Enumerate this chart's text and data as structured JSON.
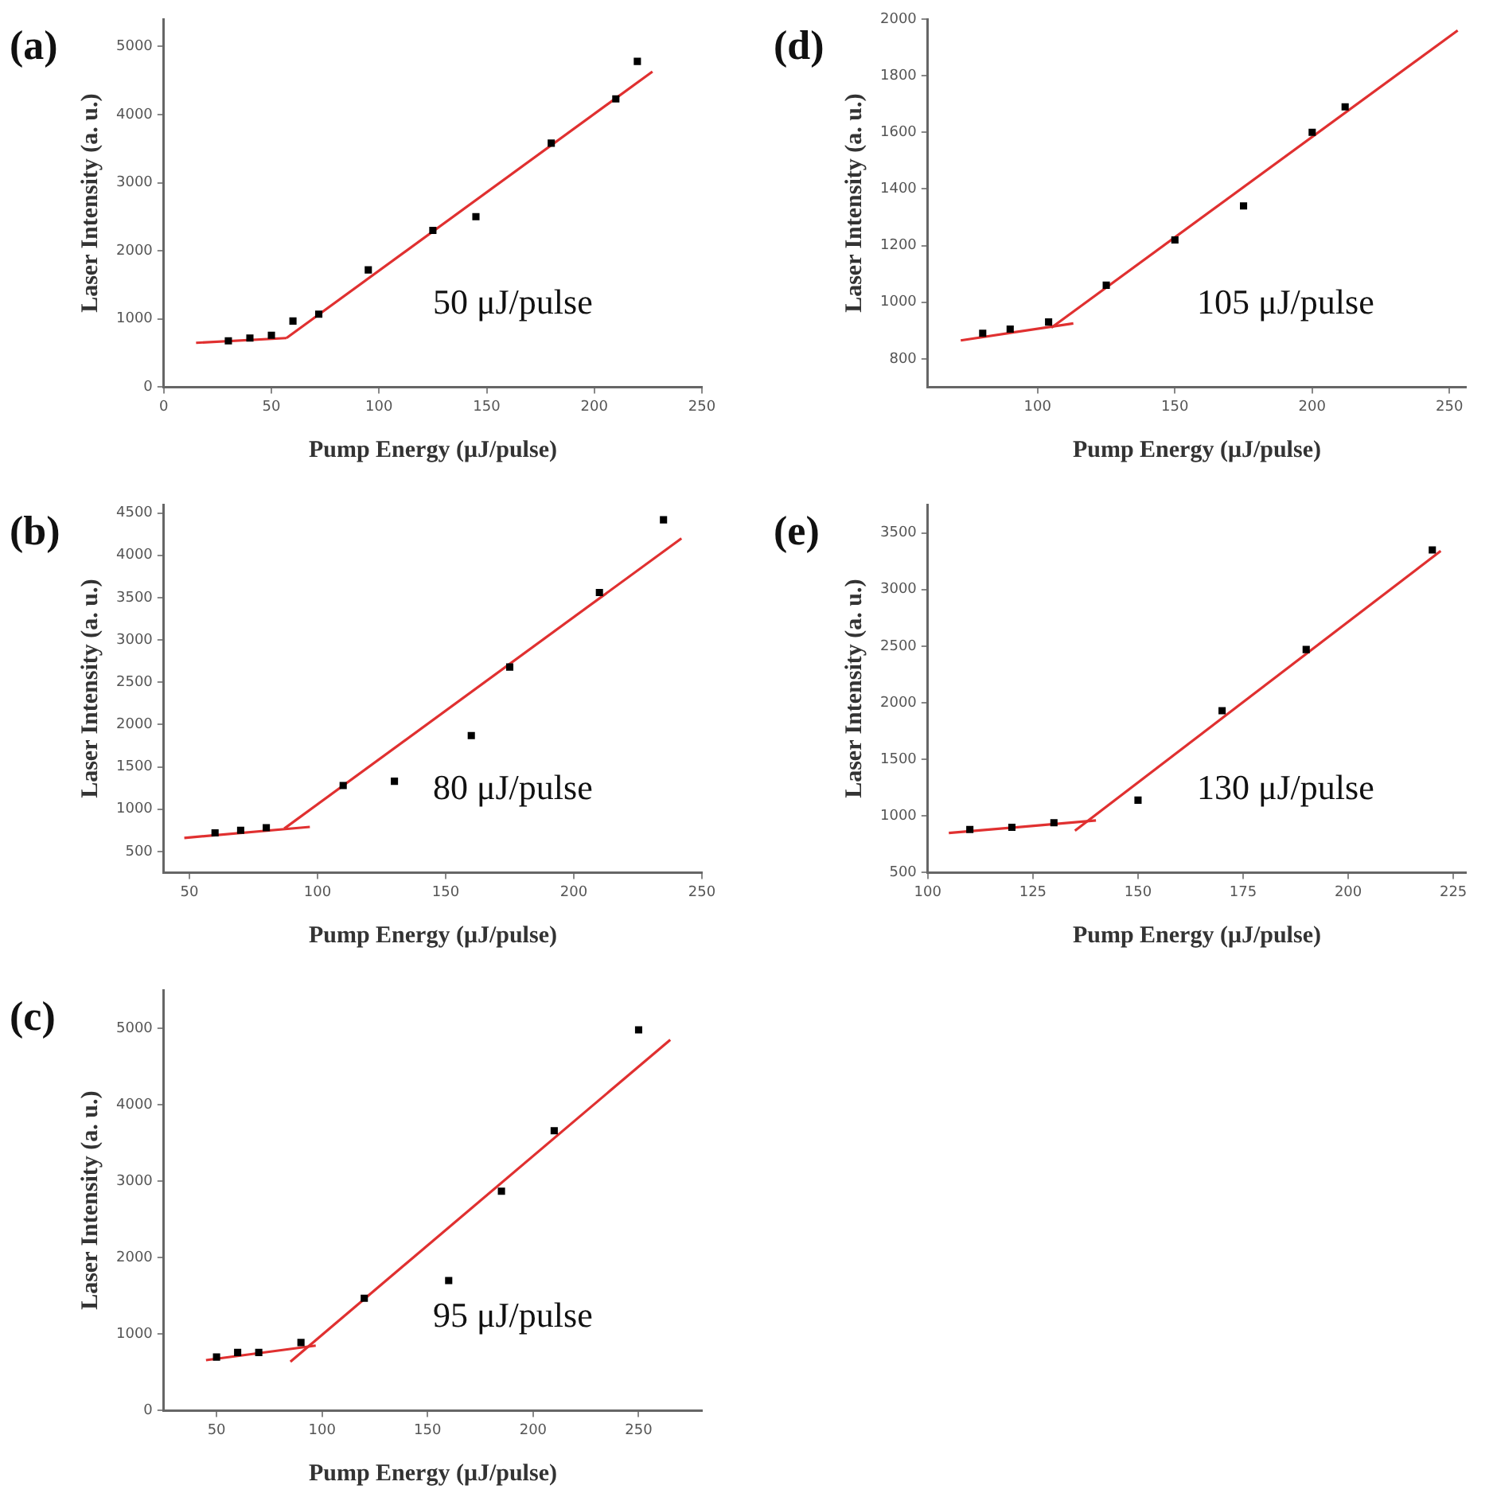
{
  "chart_data": [
    {
      "type": "scatter",
      "title": "(a)",
      "xlabel": "Pump Energy (μJ/pulse)",
      "ylabel": "Laser Intensity (a. u.)",
      "xlim": [
        0,
        250
      ],
      "xticks": [
        0,
        50,
        100,
        150,
        200,
        250
      ],
      "ylim": [
        0,
        5400
      ],
      "yticks": [
        0,
        1000,
        2000,
        3000,
        4000,
        5000
      ],
      "annotations": [
        "50 μJ/pulse"
      ],
      "series": [
        {
          "type": "scatter",
          "color": "#000000",
          "x": [
            30,
            40,
            50,
            60,
            72,
            95,
            125,
            145,
            180,
            210,
            220
          ],
          "values": [
            680,
            720,
            760,
            970,
            1070,
            1720,
            2300,
            2500,
            3580,
            4230,
            4780
          ],
          "marker": "square"
        },
        {
          "type": "line",
          "color": "#e03030",
          "x": [
            15,
            57
          ],
          "values": [
            650,
            720
          ]
        },
        {
          "type": "line",
          "color": "#e03030",
          "x": [
            57,
            227
          ],
          "values": [
            720,
            4630
          ]
        }
      ]
    },
    {
      "type": "scatter",
      "title": "(b)",
      "xlabel": "Pump Energy (μJ/pulse)",
      "ylabel": "Laser Intensity (a. u.)",
      "xlim": [
        40,
        250
      ],
      "xticks": [
        50,
        100,
        150,
        200,
        250
      ],
      "ylim": [
        250,
        4600
      ],
      "yticks": [
        500,
        1000,
        1500,
        2000,
        2500,
        3000,
        3500,
        4000,
        4500
      ],
      "annotations": [
        "80 μJ/pulse"
      ],
      "series": [
        {
          "type": "scatter",
          "color": "#000000",
          "x": [
            60,
            70,
            80,
            110,
            130,
            160,
            175,
            210,
            235
          ],
          "values": [
            720,
            750,
            780,
            1280,
            1330,
            1870,
            2680,
            3560,
            4420
          ],
          "marker": "square"
        },
        {
          "type": "line",
          "color": "#e03030",
          "x": [
            48,
            97
          ],
          "values": [
            660,
            790
          ]
        },
        {
          "type": "line",
          "color": "#e03030",
          "x": [
            87,
            242
          ],
          "values": [
            770,
            4200
          ]
        }
      ]
    },
    {
      "type": "scatter",
      "title": "(c)",
      "xlabel": "Pump Energy (μJ/pulse)",
      "ylabel": "Laser Intensity (a. u.)",
      "xlim": [
        25,
        280
      ],
      "xticks": [
        50,
        100,
        150,
        200,
        250
      ],
      "ylim": [
        0,
        5500
      ],
      "yticks": [
        0,
        1000,
        2000,
        3000,
        4000,
        5000
      ],
      "annotations": [
        "95 μJ/pulse"
      ],
      "series": [
        {
          "type": "scatter",
          "color": "#000000",
          "x": [
            50,
            60,
            70,
            90,
            120,
            160,
            185,
            210,
            250
          ],
          "values": [
            700,
            760,
            760,
            890,
            1470,
            1700,
            2870,
            3660,
            4980
          ],
          "marker": "square"
        },
        {
          "type": "line",
          "color": "#e03030",
          "x": [
            45,
            97
          ],
          "values": [
            660,
            850
          ]
        },
        {
          "type": "line",
          "color": "#e03030",
          "x": [
            85,
            265
          ],
          "values": [
            640,
            4850
          ]
        }
      ]
    },
    {
      "type": "scatter",
      "title": "(d)",
      "xlabel": "Pump Energy (μJ/pulse)",
      "ylabel": "Laser Intensity (a. u.)",
      "xlim": [
        60,
        256
      ],
      "xticks": [
        100,
        150,
        200,
        250
      ],
      "ylim": [
        700,
        2000
      ],
      "yticks": [
        800,
        1000,
        1200,
        1400,
        1600,
        1800,
        2000
      ],
      "annotations": [
        "105 μJ/pulse"
      ],
      "series": [
        {
          "type": "scatter",
          "color": "#000000",
          "x": [
            80,
            90,
            104,
            125,
            150,
            175,
            200,
            212
          ],
          "values": [
            890,
            905,
            930,
            1060,
            1220,
            1340,
            1600,
            1690
          ],
          "marker": "square"
        },
        {
          "type": "line",
          "color": "#e03030",
          "x": [
            72,
            113
          ],
          "values": [
            865,
            925
          ]
        },
        {
          "type": "line",
          "color": "#e03030",
          "x": [
            105,
            253
          ],
          "values": [
            910,
            1960
          ]
        }
      ]
    },
    {
      "type": "scatter",
      "title": "(e)",
      "xlabel": "Pump Energy (μJ/pulse)",
      "ylabel": "Laser Intensity (a. u.)",
      "xlim": [
        100,
        228
      ],
      "xticks": [
        100,
        125,
        150,
        175,
        200,
        225
      ],
      "ylim": [
        500,
        3750
      ],
      "yticks": [
        500,
        1000,
        1500,
        2000,
        2500,
        3000,
        3500
      ],
      "annotations": [
        "130 μJ/pulse"
      ],
      "series": [
        {
          "type": "scatter",
          "color": "#000000",
          "x": [
            110,
            120,
            130,
            150,
            170,
            190,
            220
          ],
          "values": [
            880,
            900,
            940,
            1140,
            1930,
            2470,
            3350
          ],
          "marker": "square"
        },
        {
          "type": "line",
          "color": "#e03030",
          "x": [
            105,
            140
          ],
          "values": [
            850,
            960
          ]
        },
        {
          "type": "line",
          "color": "#e03030",
          "x": [
            135,
            222
          ],
          "values": [
            870,
            3340
          ]
        }
      ]
    }
  ]
}
